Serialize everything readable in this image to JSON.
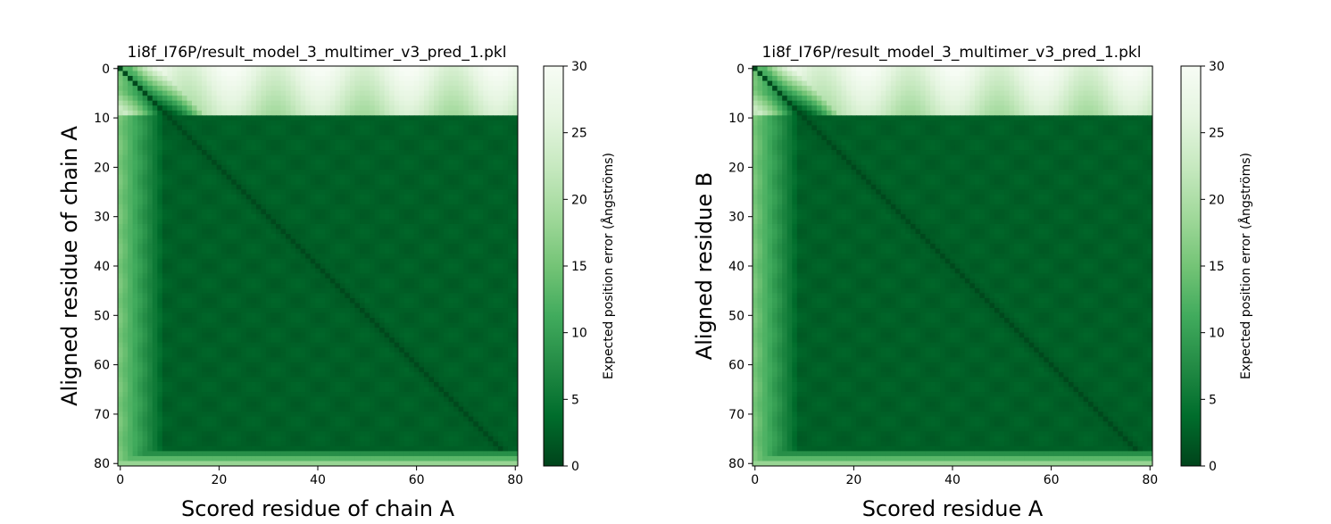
{
  "chart_data": [
    {
      "type": "heatmap",
      "title": "1i8f_I76P/result_model_3_multimer_v3_pred_1.pkl",
      "xlabel": "Scored residue of chain A",
      "ylabel": "Aligned residue of chain A",
      "n_residues": 81,
      "xlim": [
        0,
        80
      ],
      "ylim": [
        80,
        0
      ],
      "x_ticks": [
        "0",
        "20",
        "40",
        "60",
        "80"
      ],
      "y_ticks": [
        "0",
        "10",
        "20",
        "30",
        "40",
        "50",
        "60",
        "70",
        "80"
      ],
      "colormap": "Greens_r",
      "colorbar": {
        "label": "Expected position error (Ångströms)",
        "range": [
          0,
          30
        ],
        "ticks": [
          "0",
          "5",
          "10",
          "15",
          "20",
          "25",
          "30"
        ]
      },
      "pattern": {
        "diagonal_error": 0.5,
        "core_error": 2.5,
        "top_rows_high_error_region": [
          0,
          9
        ],
        "left_cols_elevated_error_region": [
          0,
          8
        ],
        "bottom_rows_elevated_error_region": [
          78,
          80
        ],
        "max_error": 30
      }
    },
    {
      "type": "heatmap",
      "title": "1i8f_I76P/result_model_3_multimer_v3_pred_1.pkl",
      "xlabel": "Scored residue A",
      "ylabel": "Aligned residue B",
      "n_residues": 81,
      "xlim": [
        0,
        80
      ],
      "ylim": [
        80,
        0
      ],
      "x_ticks": [
        "0",
        "20",
        "40",
        "60",
        "80"
      ],
      "y_ticks": [
        "0",
        "10",
        "20",
        "30",
        "40",
        "50",
        "60",
        "70",
        "80"
      ],
      "colormap": "Greens_r",
      "colorbar": {
        "label": "Expected position error (Ångströms)",
        "range": [
          0,
          30
        ],
        "ticks": [
          "0",
          "5",
          "10",
          "15",
          "20",
          "25",
          "30"
        ]
      },
      "pattern": {
        "diagonal_error": 0.5,
        "core_error": 2.5,
        "top_rows_high_error_region": [
          0,
          9
        ],
        "left_cols_elevated_error_region": [
          0,
          8
        ],
        "bottom_rows_elevated_error_region": [
          78,
          80
        ],
        "max_error": 30
      }
    }
  ]
}
